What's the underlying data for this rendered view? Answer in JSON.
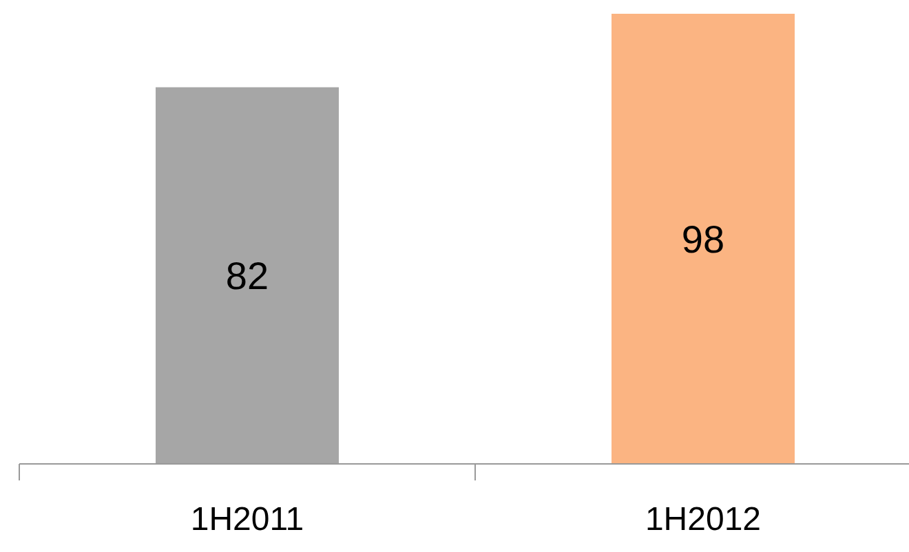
{
  "chart_data": {
    "type": "bar",
    "categories": [
      "1H2011",
      "1H2012"
    ],
    "values": [
      82,
      98
    ],
    "colors": [
      "#a6a6a6",
      "#fbb482"
    ],
    "data_labels": true
  }
}
